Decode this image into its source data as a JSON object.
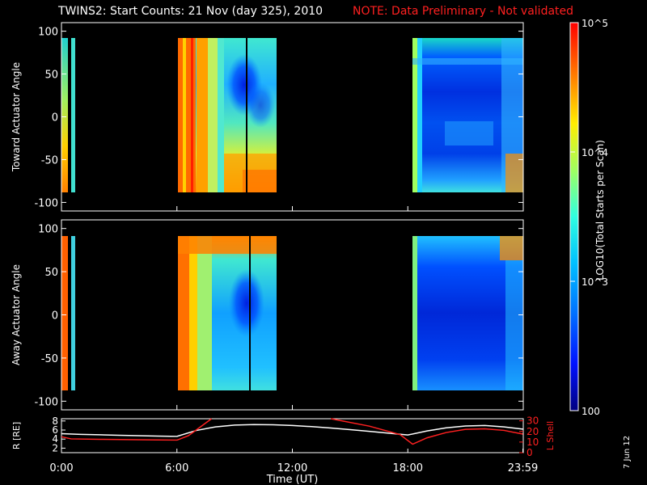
{
  "title": "TWINS2: Start Counts: 21 Nov (day 325), 2010",
  "note": "NOTE: Data Preliminary - Not validated",
  "date_stamp": "7 Jun 12",
  "colorbar": {
    "label": "LOG10(Total Starts per Scan)",
    "ticks": [
      "10^5",
      "10^4",
      "10^3",
      "100"
    ]
  },
  "colors": {
    "note_red": "#ff2020",
    "lshell_red": "#ff2020"
  },
  "chart_data": [
    {
      "type": "heatmap",
      "panel": "top",
      "ylabel": "Toward Actuator Angle",
      "ylim": [
        -110,
        110
      ],
      "yticks": [
        "100",
        "50",
        "0",
        "-50",
        "-100"
      ],
      "xlim_hours": [
        0,
        24
      ],
      "data_angle_range": [
        -90,
        90
      ],
      "data_intervals_utc": [
        [
          "0:00",
          "0:25"
        ],
        [
          "6:00",
          "11:10"
        ],
        [
          "18:00",
          "23:59"
        ]
      ],
      "zlim_log10": [
        2,
        5
      ]
    },
    {
      "type": "heatmap",
      "panel": "middle",
      "ylabel": "Away Actuator Angle",
      "ylim": [
        -110,
        110
      ],
      "yticks": [
        "100",
        "50",
        "0",
        "-50",
        "-100"
      ],
      "xlim_hours": [
        0,
        24
      ],
      "data_angle_range": [
        -90,
        90
      ],
      "data_intervals_utc": [
        [
          "0:00",
          "0:25"
        ],
        [
          "6:00",
          "11:10"
        ],
        [
          "18:00",
          "23:59"
        ]
      ],
      "zlim_log10": [
        2,
        5
      ]
    },
    {
      "type": "line",
      "panel": "bottom",
      "xlabel": "Time (UT)",
      "xticks": [
        "0:00",
        "6:00",
        "12:00",
        "18:00",
        "23:59"
      ],
      "y_left": {
        "label": "R [RE]",
        "ticks": [
          "8",
          "6",
          "4",
          "2"
        ],
        "lim": [
          1,
          8.5
        ]
      },
      "y_right": {
        "label": "L Shell",
        "ticks": [
          "30",
          "20",
          "10",
          "0"
        ],
        "lim": [
          0,
          32
        ]
      },
      "series": [
        {
          "name": "R [RE]",
          "axis": "left",
          "color": "#ffffff",
          "x": [
            0,
            1,
            2,
            3,
            4,
            5,
            6,
            7,
            8,
            9,
            10,
            11,
            12,
            13,
            14,
            15,
            16,
            17,
            18,
            19,
            20,
            21,
            22,
            23,
            23.98
          ],
          "y": [
            5.2,
            5.05,
            4.95,
            4.85,
            4.75,
            4.65,
            4.6,
            5.9,
            6.7,
            7.1,
            7.2,
            7.15,
            7.0,
            6.75,
            6.45,
            6.1,
            5.7,
            5.3,
            4.9,
            5.8,
            6.5,
            6.9,
            7.0,
            6.7,
            6.2
          ]
        },
        {
          "name": "L Shell",
          "axis": "right",
          "color": "#ff2020",
          "x": [
            0,
            0.5,
            2,
            4,
            6,
            6.6,
            7.2,
            7.8
          ],
          "y": [
            15,
            13,
            12.6,
            12.2,
            11.8,
            16,
            24,
            32
          ]
        },
        {
          "name": "L Shell",
          "axis": "right",
          "color": "#ff2020",
          "x": [
            14.0,
            16,
            17.6,
            18.25,
            19,
            20,
            21,
            22,
            23,
            23.98
          ],
          "y": [
            32,
            25,
            17,
            8,
            14,
            19,
            22,
            22.5,
            21,
            17.5
          ]
        }
      ]
    }
  ]
}
